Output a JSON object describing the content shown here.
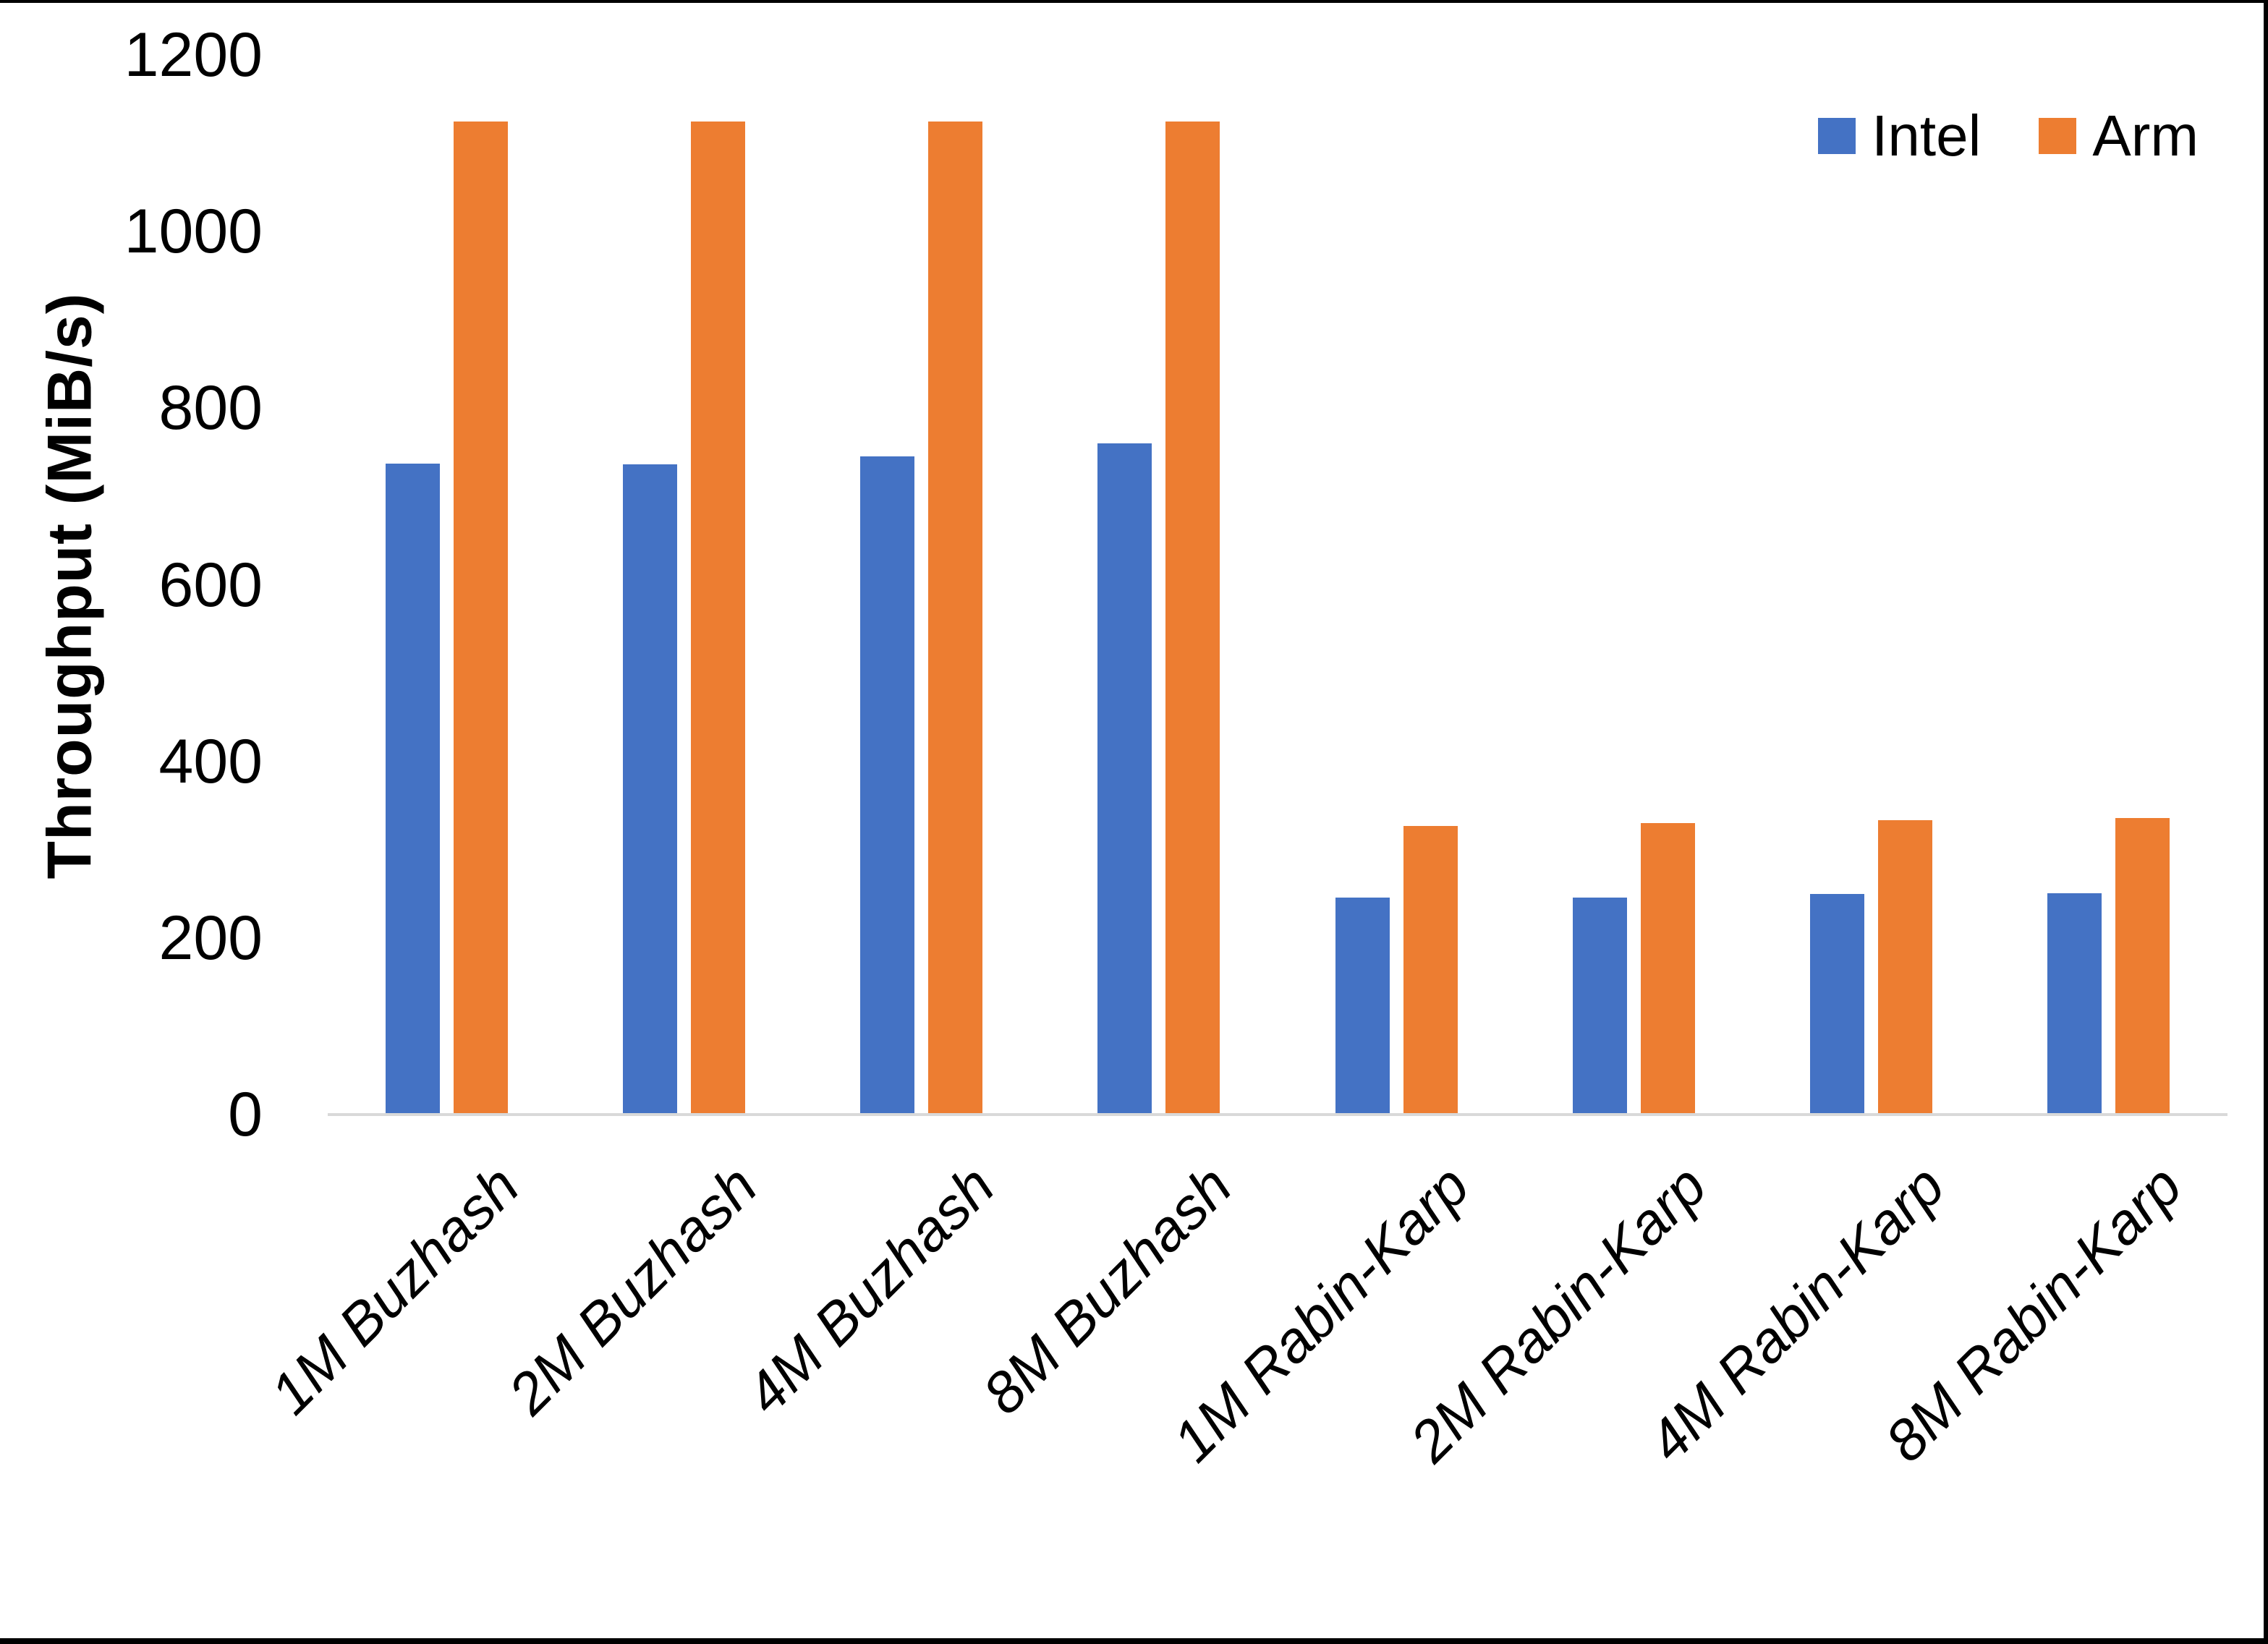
{
  "page": {
    "background": "#FFFFFF",
    "frame_border_color": "#000000"
  },
  "chart_data": {
    "type": "bar",
    "title": "",
    "xlabel": "",
    "ylabel": "Throughput (MiB/s)",
    "ylim": [
      0,
      1200
    ],
    "yticks": [
      0,
      200,
      400,
      600,
      800,
      1000,
      1200
    ],
    "grid": false,
    "axis_line_color": "#D9D9D9",
    "legend_position": "top-right",
    "categories": [
      "1M Buzhash",
      "2M Buzhash",
      "4M Buzhash",
      "8M Buzhash",
      "1M Rabin-Karp",
      "2M Rabin-Karp",
      "4M Rabin-Karp",
      "8M Rabin-Karp"
    ],
    "series": [
      {
        "name": "Intel",
        "color": "#4472C4",
        "values": [
          737,
          736,
          745,
          760,
          246,
          246,
          250,
          251
        ]
      },
      {
        "name": "Arm",
        "color": "#ED7D31",
        "values": [
          1125,
          1125,
          1125,
          1125,
          327,
          330,
          333,
          336
        ]
      }
    ]
  }
}
